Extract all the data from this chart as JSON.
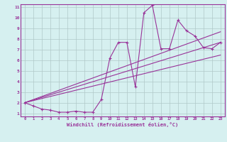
{
  "xlabel": "Windchill (Refroidissement éolien,°C)",
  "bg_color": "#d6f0f0",
  "grid_color": "#b0c8c8",
  "line_color": "#993399",
  "spine_color": "#993399",
  "tick_color": "#993399",
  "xlim": [
    -0.5,
    23.5
  ],
  "ylim": [
    0.7,
    11.3
  ],
  "xticks": [
    0,
    1,
    2,
    3,
    4,
    5,
    6,
    7,
    8,
    9,
    10,
    11,
    12,
    13,
    14,
    15,
    16,
    17,
    18,
    19,
    20,
    21,
    22,
    23
  ],
  "yticks": [
    1,
    2,
    3,
    4,
    5,
    6,
    7,
    8,
    9,
    10,
    11
  ],
  "series1_x": [
    0,
    1,
    2,
    3,
    4,
    5,
    6,
    7,
    8,
    9,
    10,
    11,
    12,
    13,
    14,
    15,
    16,
    17,
    18,
    19,
    20,
    21,
    22,
    23
  ],
  "series1_y": [
    2.0,
    1.7,
    1.4,
    1.3,
    1.1,
    1.1,
    1.2,
    1.1,
    1.1,
    2.3,
    6.2,
    7.7,
    7.7,
    3.5,
    10.5,
    11.2,
    7.1,
    7.1,
    9.8,
    8.8,
    8.3,
    7.2,
    7.1,
    7.7
  ],
  "trend1_x": [
    0,
    23
  ],
  "trend1_y": [
    2.0,
    7.7
  ],
  "trend2_x": [
    0,
    23
  ],
  "trend2_y": [
    2.0,
    6.5
  ],
  "trend3_x": [
    0,
    23
  ],
  "trend3_y": [
    2.0,
    8.7
  ]
}
